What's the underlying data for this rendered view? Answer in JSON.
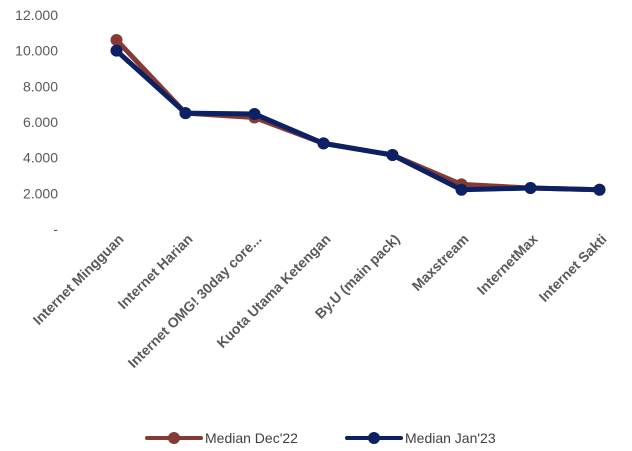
{
  "chart_data": {
    "type": "line",
    "categories": [
      "Internet Mingguan",
      "Internet Harian",
      "Internet OMG! 30day core...",
      "Kuota Utama Ketengan",
      "By.U (main pack)",
      "Maxstream",
      "InternetMax",
      "Internet Sakti"
    ],
    "series": [
      {
        "name": "Median Dec'22",
        "color": "#843a35",
        "values": [
          10600,
          6500,
          6250,
          4800,
          4150,
          2500,
          2300,
          2200
        ]
      },
      {
        "name": "Median Jan'23",
        "color": "#0b2163",
        "values": [
          10000,
          6500,
          6450,
          4800,
          4150,
          2200,
          2300,
          2200
        ]
      }
    ],
    "ylim": [
      0,
      12000
    ],
    "yticks": [
      "-",
      "2.000",
      "4.000",
      "6.000",
      "8.000",
      "10.000",
      "12.000"
    ],
    "ytick_values": [
      0,
      2000,
      4000,
      6000,
      8000,
      10000,
      12000
    ],
    "grid": false,
    "legend_position": "bottom",
    "title": "",
    "xlabel": "",
    "ylabel": ""
  }
}
